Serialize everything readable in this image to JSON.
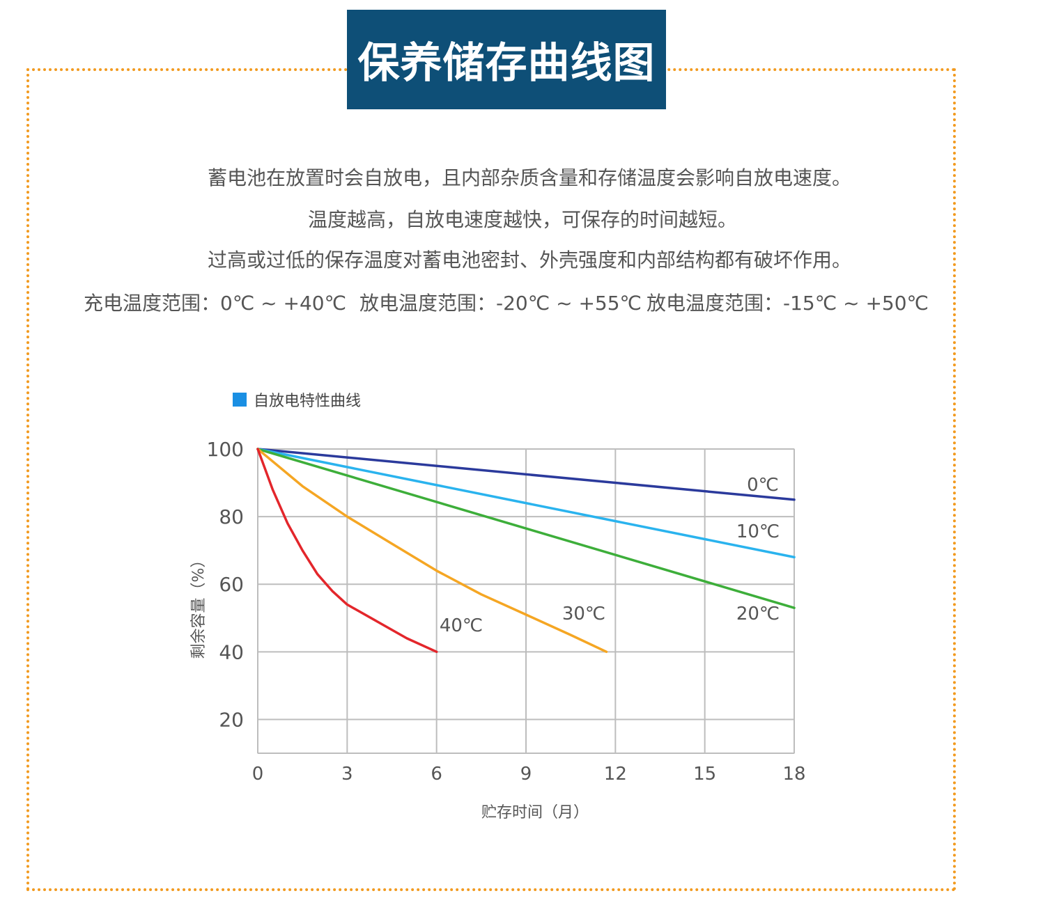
{
  "header": {
    "title": "保养储存曲线图"
  },
  "description": {
    "line1": "蓄电池在放置时会自放电，且内部杂质含量和存储温度会影响自放电速度。",
    "line2": "温度越高，自放电速度越快，可保存的时间越短。",
    "line3": "过高或过低的保存温度对蓄电池密封、外壳强度和内部结构都有破坏作用。"
  },
  "ranges": {
    "charge": "充电温度范围：0℃ ~ +40℃",
    "discharge": "放电温度范围：-20℃ ~ +55℃",
    "discharge2": "放电温度范围：-15℃ ~ +50℃"
  },
  "colors": {
    "frame": "#f29a1f",
    "title_bg": "#0e4f77",
    "legend": "#1a8fe3"
  },
  "chart_data": {
    "type": "line",
    "legend": "自放电特性曲线",
    "xlabel": "贮存时间（月）",
    "ylabel": "剩余容量（%）",
    "xlim": [
      0,
      18
    ],
    "ylim": [
      10,
      100
    ],
    "xticks": [
      0,
      3,
      6,
      9,
      12,
      15,
      18
    ],
    "yticks": [
      20,
      40,
      60,
      80,
      100
    ],
    "grid": true,
    "series": [
      {
        "name": "0℃",
        "color": "#2b3a9c",
        "x": [
          0,
          18
        ],
        "y": [
          100,
          85
        ]
      },
      {
        "name": "10℃",
        "color": "#2ab3ee",
        "x": [
          0,
          18
        ],
        "y": [
          100,
          68
        ]
      },
      {
        "name": "20℃",
        "color": "#3dae3a",
        "x": [
          0,
          18
        ],
        "y": [
          100,
          53
        ]
      },
      {
        "name": "30℃",
        "color": "#f5a623",
        "x": [
          0,
          1.5,
          3,
          4.5,
          6,
          7.5,
          9,
          10.5,
          11.7
        ],
        "y": [
          100,
          89,
          80,
          72,
          64,
          57,
          51,
          45,
          40
        ]
      },
      {
        "name": "40℃",
        "color": "#e3262b",
        "x": [
          0,
          0.5,
          1,
          1.5,
          2,
          2.5,
          3,
          4,
          5,
          6
        ],
        "y": [
          100,
          88,
          78,
          70,
          63,
          58,
          54,
          49,
          44,
          40
        ]
      }
    ]
  }
}
